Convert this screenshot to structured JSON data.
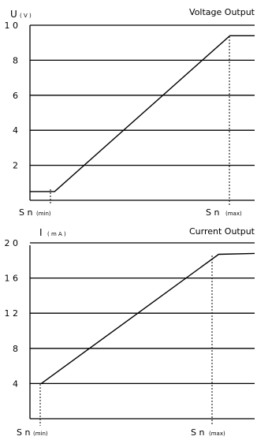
{
  "chart_data": [
    {
      "type": "line",
      "title": "Voltage Output",
      "ylabel": "U",
      "ylabel_unit": "( V )",
      "ylim": [
        0,
        10
      ],
      "yticks": [
        2,
        4,
        6,
        8,
        10
      ],
      "ytick_labels": [
        "2",
        "4",
        "6",
        "8",
        "1 0"
      ],
      "grid": "horizontal",
      "marker_labels": [
        {
          "label": "S n",
          "sub": "(min)"
        },
        {
          "label": "S n",
          "sub": "(max)"
        }
      ],
      "series": [
        {
          "points": [
            [
              0,
              0.5
            ],
            [
              0.11,
              0.5
            ],
            [
              0.89,
              9.4
            ],
            [
              1.0,
              9.4
            ]
          ]
        }
      ]
    },
    {
      "type": "line",
      "title": "Current Output",
      "ylabel": "I",
      "ylabel_unit": "( m A )",
      "ylim": [
        0,
        20
      ],
      "yticks": [
        4,
        8,
        12,
        16,
        20
      ],
      "ytick_labels": [
        "4",
        "8",
        "1 2",
        "1 6",
        "2 0"
      ],
      "grid": "horizontal",
      "marker_labels": [
        {
          "label": "S n",
          "sub": "(min)"
        },
        {
          "label": "S n",
          "sub": "(max)"
        }
      ],
      "series": [
        {
          "points": [
            [
              0.05,
              4
            ],
            [
              0.84,
              18.7
            ],
            [
              1.0,
              18.8
            ]
          ]
        }
      ]
    }
  ]
}
